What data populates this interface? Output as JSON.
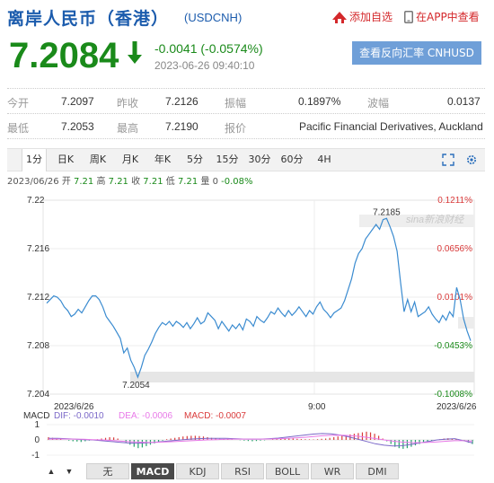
{
  "header": {
    "title": "离岸人民币（香港）",
    "code": "(USDCNH)",
    "add_watch": "添加自选",
    "app_view": "在APP中查看"
  },
  "quote": {
    "price": "7.2084",
    "change": "-0.0041 (-0.0574%)",
    "time": "2023-06-26 09:40:10",
    "reverse_button": "查看反向汇率 CNHUSD"
  },
  "stats": {
    "row1": [
      {
        "label": "今开",
        "value": "7.2097"
      },
      {
        "label": "昨收",
        "value": "7.2126"
      },
      {
        "label": "振幅",
        "value": "0.1897%"
      },
      {
        "label": "波幅",
        "value": "0.0137"
      }
    ],
    "row2": [
      {
        "label": "最低",
        "value": "7.2053"
      },
      {
        "label": "最高",
        "value": "7.2190"
      },
      {
        "label": "报价",
        "value": "Pacific Financial Derivatives, Auckland"
      }
    ]
  },
  "tabs": [
    "1分",
    "日K",
    "周K",
    "月K",
    "年K",
    "5分",
    "15分",
    "30分",
    "60分",
    "4H"
  ],
  "active_tab": 0,
  "chart_info": {
    "date": "2023/06/26",
    "open_label": "开",
    "open": "7.21",
    "high_label": "高",
    "high": "7.21",
    "close_label": "收",
    "close": "7.21",
    "low_label": "低",
    "low": "7.21",
    "volume_label": "量",
    "volume": "0",
    "pct": "-0.08%"
  },
  "chart_data": {
    "type": "line",
    "ylim": [
      7.204,
      7.22
    ],
    "y_ticks": [
      "7.22",
      "7.216",
      "7.212",
      "7.208",
      "7.204"
    ],
    "y_tick_values": [
      7.22,
      7.216,
      7.212,
      7.208,
      7.204
    ],
    "right_ticks": [
      "0.1211%",
      "0.0656%",
      "0.0101%",
      "-0.0453%",
      "-0.1008%"
    ],
    "x_labels": [
      "2023/6/26",
      "9:00",
      "2023/6/26"
    ],
    "high_label": "7.2185",
    "low_label": "7.2054",
    "watermark": "sina新浪财经",
    "series": [
      {
        "values": [
          7.2115,
          7.2118,
          7.2121,
          7.212,
          7.2117,
          7.2112,
          7.2109,
          7.2104,
          7.2106,
          7.211,
          7.2107,
          7.2112,
          7.2117,
          7.2121,
          7.2121,
          7.2118,
          7.2112,
          7.2104,
          7.21,
          7.2096,
          7.2091,
          7.2086,
          7.2074,
          7.2078,
          7.2068,
          7.2062,
          7.2054,
          7.2062,
          7.2072,
          7.2077,
          7.2083,
          7.209,
          7.2095,
          7.2099,
          7.2097,
          7.21,
          7.2096,
          7.21,
          7.2098,
          7.2095,
          7.2099,
          7.2094,
          7.2098,
          7.2103,
          7.2098,
          7.21,
          7.2107,
          7.2104,
          7.2101,
          7.2094,
          7.21,
          7.2096,
          7.2092,
          7.2097,
          7.2094,
          7.2098,
          7.2093,
          7.2102,
          7.21,
          7.2096,
          7.2104,
          7.2101,
          7.2099,
          7.2103,
          7.2108,
          7.2106,
          7.2111,
          7.2107,
          7.2104,
          7.2109,
          7.2105,
          7.2108,
          7.2112,
          7.2108,
          7.2104,
          7.2109,
          7.2106,
          7.2112,
          7.2116,
          7.211,
          7.2107,
          7.2103,
          7.2107,
          7.2109,
          7.2111,
          7.2117,
          7.2126,
          7.2135,
          7.2148,
          7.2156,
          7.216,
          7.2168,
          7.2172,
          7.2176,
          7.218,
          7.2176,
          7.2184,
          7.2185,
          7.2178,
          7.217,
          7.2158,
          7.2132,
          7.2108,
          7.2118,
          7.2108,
          7.2116,
          7.2104,
          7.2106,
          7.2108,
          7.2112,
          7.2106,
          7.2102,
          7.2099,
          7.2105,
          7.2101,
          7.2108,
          7.2104,
          7.2128,
          7.2118,
          7.2102,
          7.2092,
          7.2084
        ]
      }
    ]
  },
  "macd": {
    "label": "MACD",
    "dif_label": "DIF: -0.0010",
    "dea_label": "DEA: -0.0006",
    "macd_label": "MACD: -0.0007",
    "axis": [
      "1",
      "0",
      "-1"
    ],
    "bars": [
      0.2,
      0.15,
      0.1,
      0.05,
      0,
      -0.05,
      -0.1,
      -0.12,
      -0.15,
      -0.1,
      -0.05,
      0,
      0.05,
      0.1,
      0.15,
      0.2,
      0.18,
      0.1,
      0,
      -0.2,
      -0.35,
      -0.5,
      -0.6,
      -0.55,
      -0.45,
      -0.35,
      -0.25,
      -0.15,
      -0.05,
      0.05,
      0.1,
      0.15,
      0.2,
      0.25,
      0.28,
      0.3,
      0.3,
      0.28,
      0.25,
      0.2,
      0.15,
      0.1,
      0.08,
      0.05,
      0.03,
      0.02,
      0,
      -0.02,
      -0.05,
      -0.08,
      -0.1,
      -0.08,
      -0.05,
      -0.03,
      0,
      0.03,
      0.05,
      0.08,
      0.1,
      0.12,
      0.1,
      0.08,
      0.06,
      0.05,
      0.04,
      0.03,
      0.05,
      0.08,
      0.1,
      0.15,
      0.2,
      0.25,
      0.3,
      0.35,
      0.4,
      0.45,
      0.5,
      0.55,
      0.6,
      0.55,
      0.45,
      0.3,
      0.1,
      -0.1,
      -0.3,
      -0.5,
      -0.6,
      -0.65,
      -0.6,
      -0.5,
      -0.4,
      -0.3,
      -0.2,
      -0.1,
      -0.05,
      0,
      0.05,
      0.1,
      0.12,
      0.1,
      0.05,
      0,
      -0.1,
      -0.2,
      -0.3
    ],
    "dif": [
      0.1,
      0.1,
      0.08,
      0.05,
      0.02,
      0,
      -0.05,
      -0.1,
      -0.15,
      -0.2,
      -0.22,
      -0.2,
      -0.15,
      -0.1,
      -0.05,
      0,
      0.05,
      0.08,
      0.1,
      0.1,
      0.1,
      0.08,
      0.06,
      0.05,
      0.05,
      0.08,
      0.12,
      0.18,
      0.25,
      0.32,
      0.38,
      0.42,
      0.4,
      0.32,
      0.2,
      0.05,
      -0.1,
      -0.25,
      -0.35,
      -0.4,
      -0.38,
      -0.3,
      -0.2,
      -0.1,
      0,
      0.05,
      0.08,
      -0.05,
      -0.2
    ],
    "dea": [
      0.05,
      0.06,
      0.06,
      0.05,
      0.04,
      0.02,
      0,
      -0.03,
      -0.07,
      -0.11,
      -0.14,
      -0.16,
      -0.16,
      -0.14,
      -0.12,
      -0.09,
      -0.06,
      -0.03,
      0,
      0.02,
      0.04,
      0.05,
      0.05,
      0.05,
      0.05,
      0.06,
      0.07,
      0.1,
      0.13,
      0.17,
      0.22,
      0.27,
      0.3,
      0.31,
      0.29,
      0.24,
      0.17,
      0.09,
      0,
      -0.08,
      -0.14,
      -0.17,
      -0.18,
      -0.16,
      -0.13,
      -0.09,
      -0.05,
      -0.05,
      -0.08
    ]
  },
  "indicator_tabs": [
    "无",
    "MACD",
    "KDJ",
    "RSI",
    "BOLL",
    "WR",
    "DMI"
  ],
  "active_indicator": 1,
  "colors": {
    "price_down": "#1a8a1a",
    "line": "#3a8bd0",
    "title": "#1c5cad",
    "dif": "#7b68c8",
    "dea": "#e879e8",
    "macd_up": "#d93a3a",
    "macd_down": "#22a06b"
  }
}
